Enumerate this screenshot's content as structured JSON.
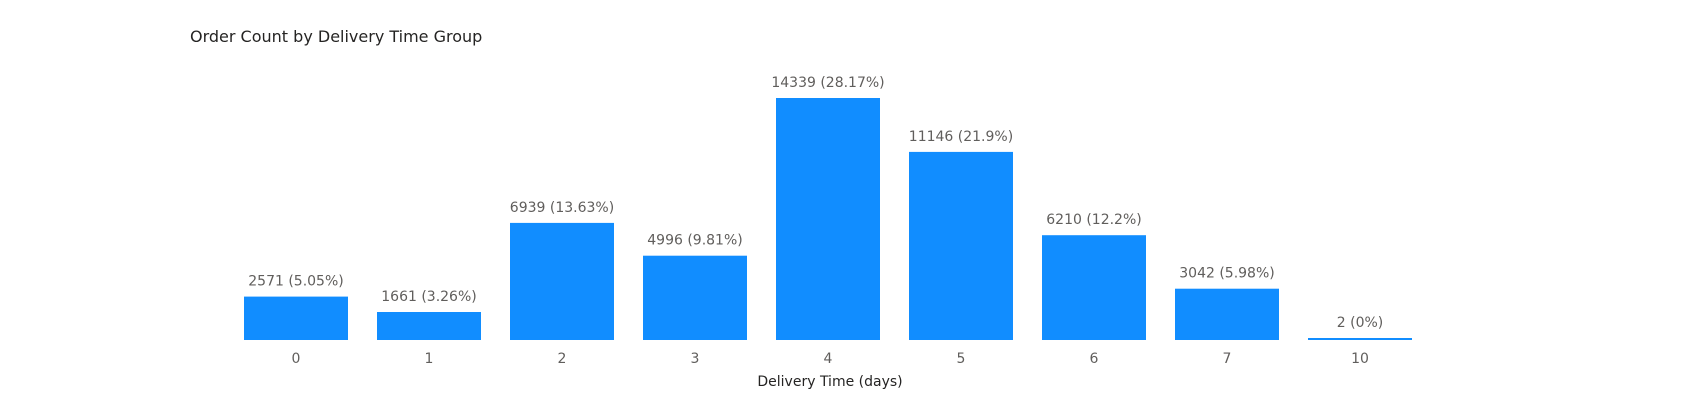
{
  "chart_data": {
    "type": "bar",
    "title": "Order Count by Delivery Time Group",
    "xlabel": "Delivery Time (days)",
    "ylabel": "",
    "categories": [
      "0",
      "1",
      "2",
      "3",
      "4",
      "5",
      "6",
      "7",
      "10"
    ],
    "values": [
      2571,
      1661,
      6939,
      4996,
      14339,
      11146,
      6210,
      3042,
      2
    ],
    "data_labels": [
      "2571 (5.05%)",
      "1661 (3.26%)",
      "6939 (13.63%)",
      "4996 (9.81%)",
      "14339 (28.17%)",
      "11146 (21.9%)",
      "6210 (12.2%)",
      "3042 (5.98%)",
      "2 (0%)"
    ],
    "ylim": [
      0,
      14339
    ],
    "grid": false,
    "legend": "none",
    "bar_color": "#118DFF"
  }
}
